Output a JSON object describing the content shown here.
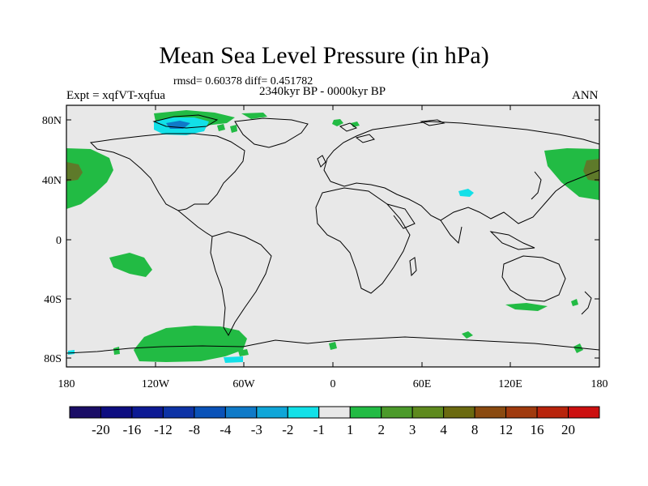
{
  "title": "Mean Sea Level Pressure (in hPa)",
  "stats": "rmsd= 0.60378 diff= 0.451782",
  "experiment": "Expt = xqfVT-xqfua",
  "period": "2340kyr BP - 0000kyr BP",
  "season": "ANN",
  "lat_labels": [
    "80N",
    "40N",
    "0",
    "40S",
    "80S"
  ],
  "lon_labels": [
    "180",
    "120W",
    "60W",
    "0",
    "60E",
    "120E",
    "180"
  ],
  "colorbar": {
    "labels": [
      "-20",
      "-16",
      "-12",
      "-8",
      "-4",
      "-3",
      "-2",
      "-1",
      "1",
      "2",
      "3",
      "4",
      "8",
      "12",
      "16",
      "20"
    ],
    "colors": [
      "#1a0d66",
      "#0d0d80",
      "#0d1a94",
      "#0d33a6",
      "#0a52b8",
      "#0f7ac8",
      "#10a6d8",
      "#12e0e8",
      "#e8e8e8",
      "#22bb44",
      "#4b9a2a",
      "#5e8a1e",
      "#6b6a10",
      "#8a4a10",
      "#a03a0e",
      "#b8240c",
      "#cc1010"
    ]
  },
  "colors": {
    "land_fill": "#e8e8e8",
    "coast": "#000000",
    "positive_anomaly": "#22bb44",
    "strong_positive": "#5e7a2a",
    "negative_anomaly": "#12e0e8",
    "strong_negative": "#0f7ac8"
  }
}
